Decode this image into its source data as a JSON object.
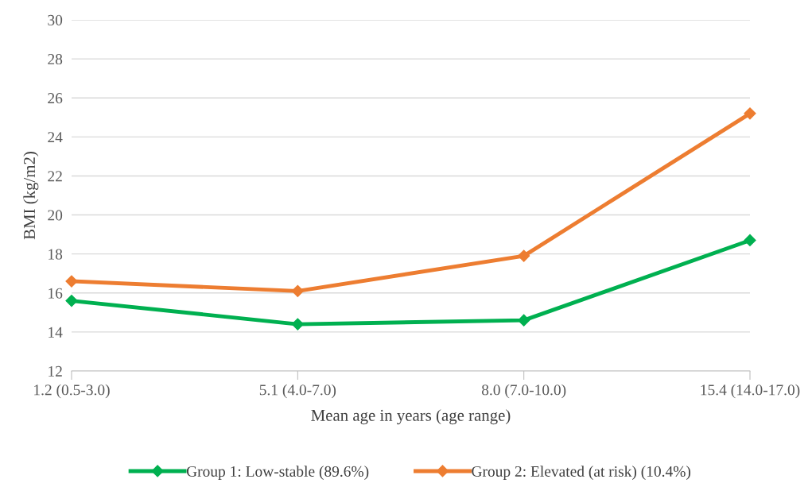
{
  "chart_data": {
    "type": "line",
    "xlabel": "Mean age in years (age range)",
    "ylabel": "BMI (kg/m2)",
    "categories": [
      "1.2 (0.5-3.0)",
      "5.1 (4.0-7.0)",
      "8.0 (7.0-10.0)",
      "15.4 (14.0-17.0)"
    ],
    "series": [
      {
        "name": "Group 1: Low-stable (89.6%)",
        "color": "#00b050",
        "values": [
          15.6,
          14.4,
          14.6,
          18.7
        ]
      },
      {
        "name": "Group 2: Elevated (at risk) (10.4%)",
        "color": "#ed7d31",
        "values": [
          16.6,
          16.1,
          17.9,
          25.2
        ]
      }
    ],
    "ylim": [
      12,
      30
    ],
    "yticks": [
      12,
      14,
      16,
      18,
      20,
      22,
      24,
      26,
      28,
      30
    ],
    "grid": "y",
    "legend": "bottom",
    "marker": "diamond",
    "line_style": "solid"
  }
}
